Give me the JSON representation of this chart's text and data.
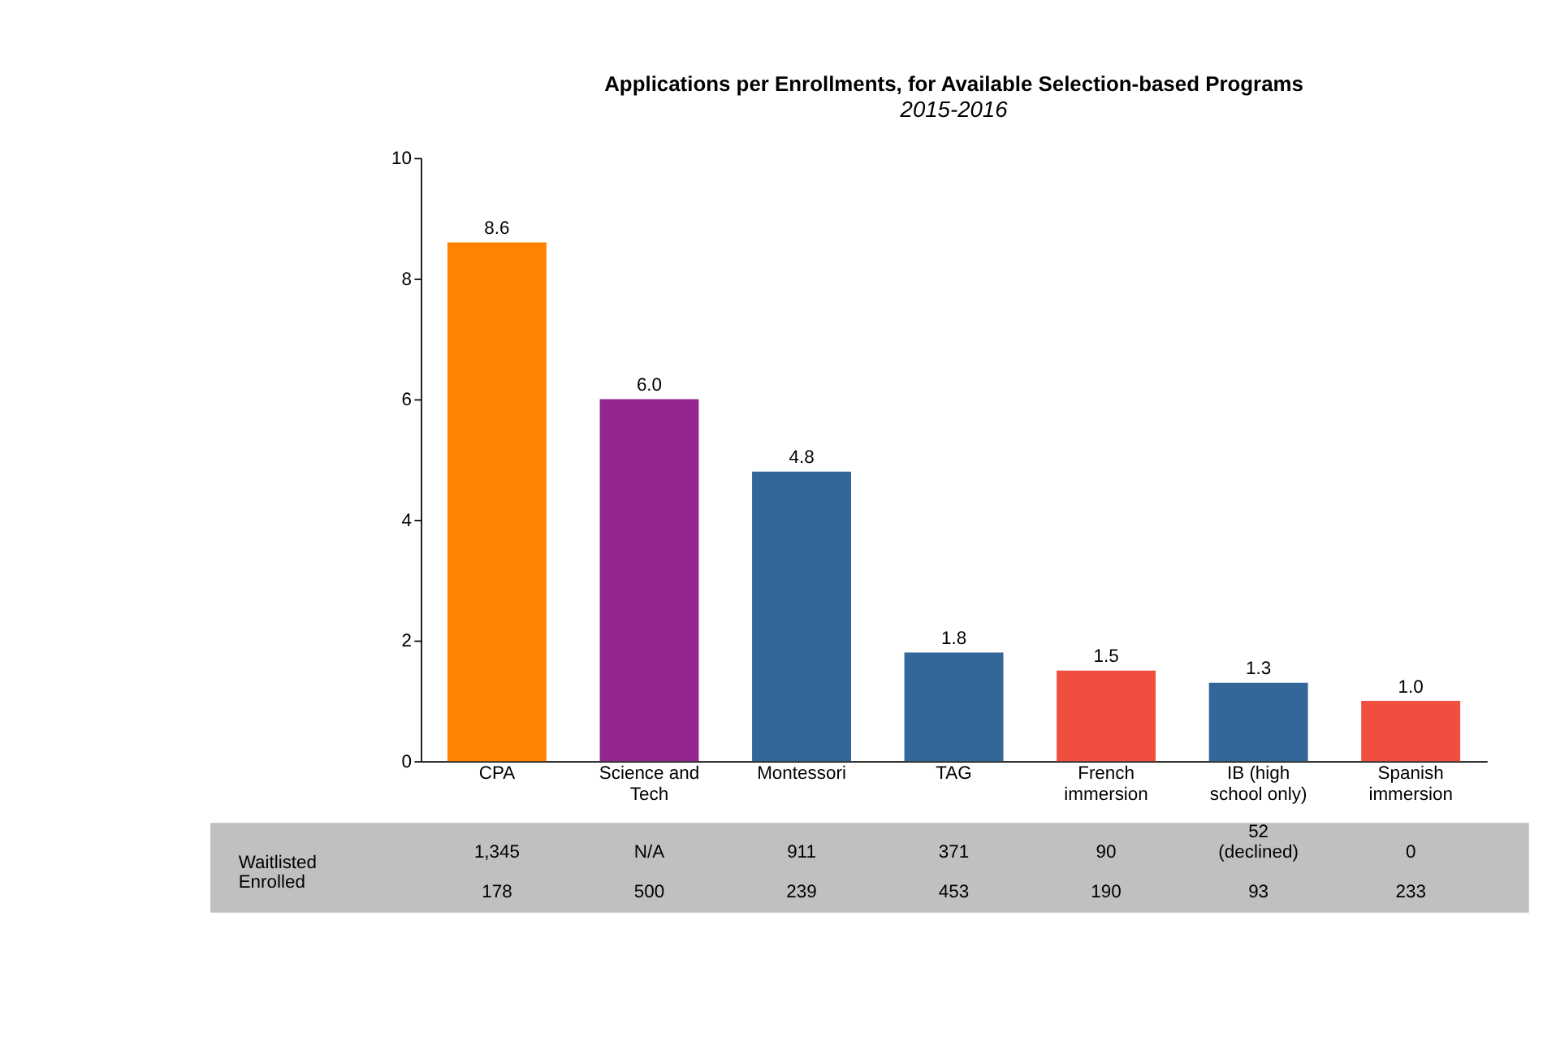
{
  "chart_data": {
    "type": "bar",
    "title": "Applications per Enrollments, for Available Selection-based Programs",
    "subtitle": "2015-2016",
    "categories": [
      "CPA",
      "Science and Tech",
      "Montessori",
      "TAG",
      "French immersion",
      "IB (high school only)",
      "Spanish immersion"
    ],
    "values": [
      8.6,
      6.0,
      4.8,
      1.8,
      1.5,
      1.3,
      1.0
    ],
    "value_labels": [
      "8.6",
      "6.0",
      "4.8",
      "1.8",
      "1.5",
      "1.3",
      "1.0"
    ],
    "colors": [
      "#ff8200",
      "#93278f",
      "#336699",
      "#336699",
      "#f04e3e",
      "#336699",
      "#f04e3e"
    ],
    "ylim": [
      0,
      10
    ],
    "yticks": [
      0,
      2,
      4,
      6,
      8,
      10
    ],
    "grid": false,
    "annotations": [
      "Waitlisted",
      "1,345",
      "N/A",
      "911",
      "371",
      "90",
      "52 (declined)",
      "0",
      "Enrolled",
      "178",
      "500",
      "239",
      "453",
      "190",
      "93",
      "233"
    ]
  }
}
